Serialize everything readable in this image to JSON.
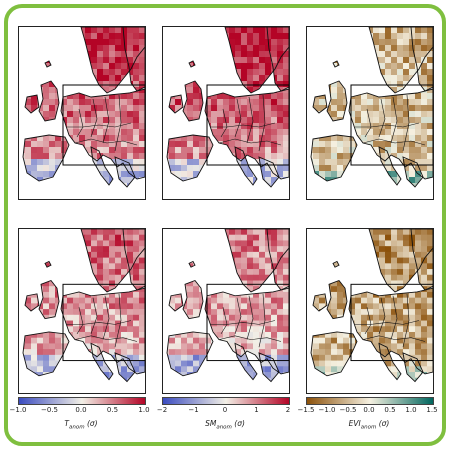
{
  "panels": [
    {
      "id": "tanom-top",
      "scheme": "coolwarm",
      "level": 0.8
    },
    {
      "id": "smanom-top",
      "scheme": "coolwarm",
      "level": 0.85
    },
    {
      "id": "evianom-top",
      "scheme": "brbg",
      "level": -0.35
    },
    {
      "id": "tanom-bottom",
      "scheme": "coolwarm",
      "level": 0.55
    },
    {
      "id": "smanom-bottom",
      "scheme": "coolwarm",
      "level": 0.45
    },
    {
      "id": "evianom-bottom",
      "scheme": "brbg",
      "level": -0.5
    }
  ],
  "colorbars": [
    {
      "scheme": "coolwarm",
      "ticks": [
        "−1.0",
        "−0.5",
        "0.0",
        "0.5",
        "1.0"
      ],
      "label_main": "T",
      "label_sub": "anom",
      "label_unit": " (σ)"
    },
    {
      "scheme": "coolwarm",
      "ticks": [
        "−2",
        "−1",
        "0",
        "1",
        "2"
      ],
      "label_main": "SM",
      "label_sub": "anom",
      "label_unit": " (σ)"
    },
    {
      "scheme": "brbg",
      "ticks": [
        "−1.5",
        "−1.0",
        "−0.5",
        "0.0",
        "0.5",
        "1.0",
        "1.5"
      ],
      "label_main": "EVI",
      "label_sub": "anom",
      "label_unit": " (σ)"
    }
  ],
  "colors": {
    "frame": "#7fbf3f",
    "coolwarm_low": "#3b4cc0",
    "coolwarm_mid": "#f2efe6",
    "coolwarm_high": "#b40426",
    "brbg_low": "#8c510a",
    "brbg_mid": "#f5f0e0",
    "brbg_high": "#01665e"
  }
}
